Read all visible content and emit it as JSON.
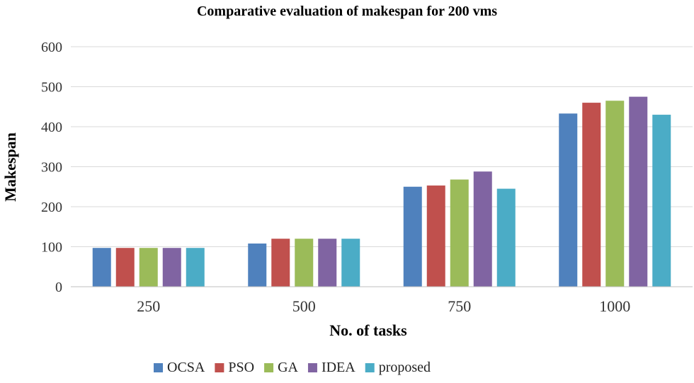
{
  "chart_data": {
    "type": "bar",
    "title": "Comparative evaluation of makespan for 200 vms",
    "xlabel": "No. of tasks",
    "ylabel": "Makespan",
    "categories": [
      "250",
      "500",
      "750",
      "1000"
    ],
    "ylim": [
      0,
      600
    ],
    "yticks": [
      0,
      100,
      200,
      300,
      400,
      500,
      600
    ],
    "grid": true,
    "legend_position": "bottom",
    "series": [
      {
        "name": "OCSA",
        "color": "#4f81bd",
        "values": [
          97,
          108,
          250,
          433
        ]
      },
      {
        "name": "PSO",
        "color": "#c0504d",
        "values": [
          97,
          120,
          253,
          460
        ]
      },
      {
        "name": "GA",
        "color": "#9bbb59",
        "values": [
          97,
          120,
          268,
          465
        ]
      },
      {
        "name": "IDEA",
        "color": "#8064a2",
        "values": [
          97,
          120,
          288,
          475
        ]
      },
      {
        "name": "proposed",
        "color": "#4bacc6",
        "values": [
          97,
          120,
          245,
          430
        ]
      }
    ]
  }
}
